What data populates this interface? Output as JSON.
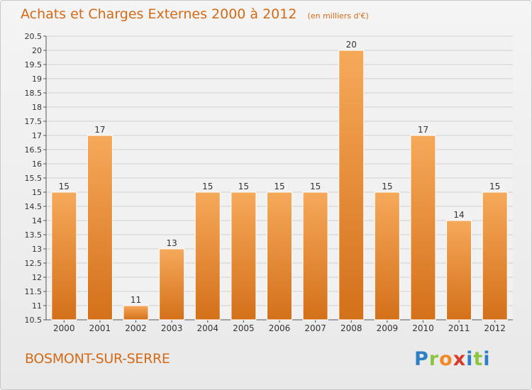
{
  "header": {
    "title": "Achats et Charges Externes 2000 à 2012",
    "unit": "(en milliers d'€)"
  },
  "footer": {
    "commune": "BOSMONT-SUR-SERRE",
    "logo_text": "Proxiti"
  },
  "colors": {
    "accent": "#d46a16",
    "bar_top": "#f6a95a",
    "bar_bottom": "#d4701a",
    "grid": "#d0d0d0"
  },
  "chart_data": {
    "type": "bar",
    "title": "Achats et Charges Externes 2000 à 2012",
    "subtitle": "(en milliers d'€)",
    "xlabel": "",
    "ylabel": "",
    "categories": [
      "2000",
      "2001",
      "2002",
      "2003",
      "2004",
      "2005",
      "2006",
      "2007",
      "2008",
      "2009",
      "2010",
      "2011",
      "2012"
    ],
    "values": [
      15,
      17,
      11,
      13,
      15,
      15,
      15,
      15,
      20,
      15,
      17,
      14,
      15
    ],
    "data_labels": [
      "15",
      "17",
      "11",
      "13",
      "15",
      "15",
      "15",
      "15",
      "20",
      "15",
      "17",
      "14",
      "15"
    ],
    "ylim": [
      10.5,
      20.5
    ],
    "yticks": [
      "10.5",
      "11",
      "11.5",
      "12",
      "12.5",
      "13",
      "13.5",
      "14",
      "14.5",
      "15",
      "15.5",
      "16",
      "16.5",
      "17",
      "17.5",
      "18",
      "18.5",
      "19",
      "19.5",
      "20",
      "20.5"
    ],
    "grid": true,
    "legend": "none"
  }
}
